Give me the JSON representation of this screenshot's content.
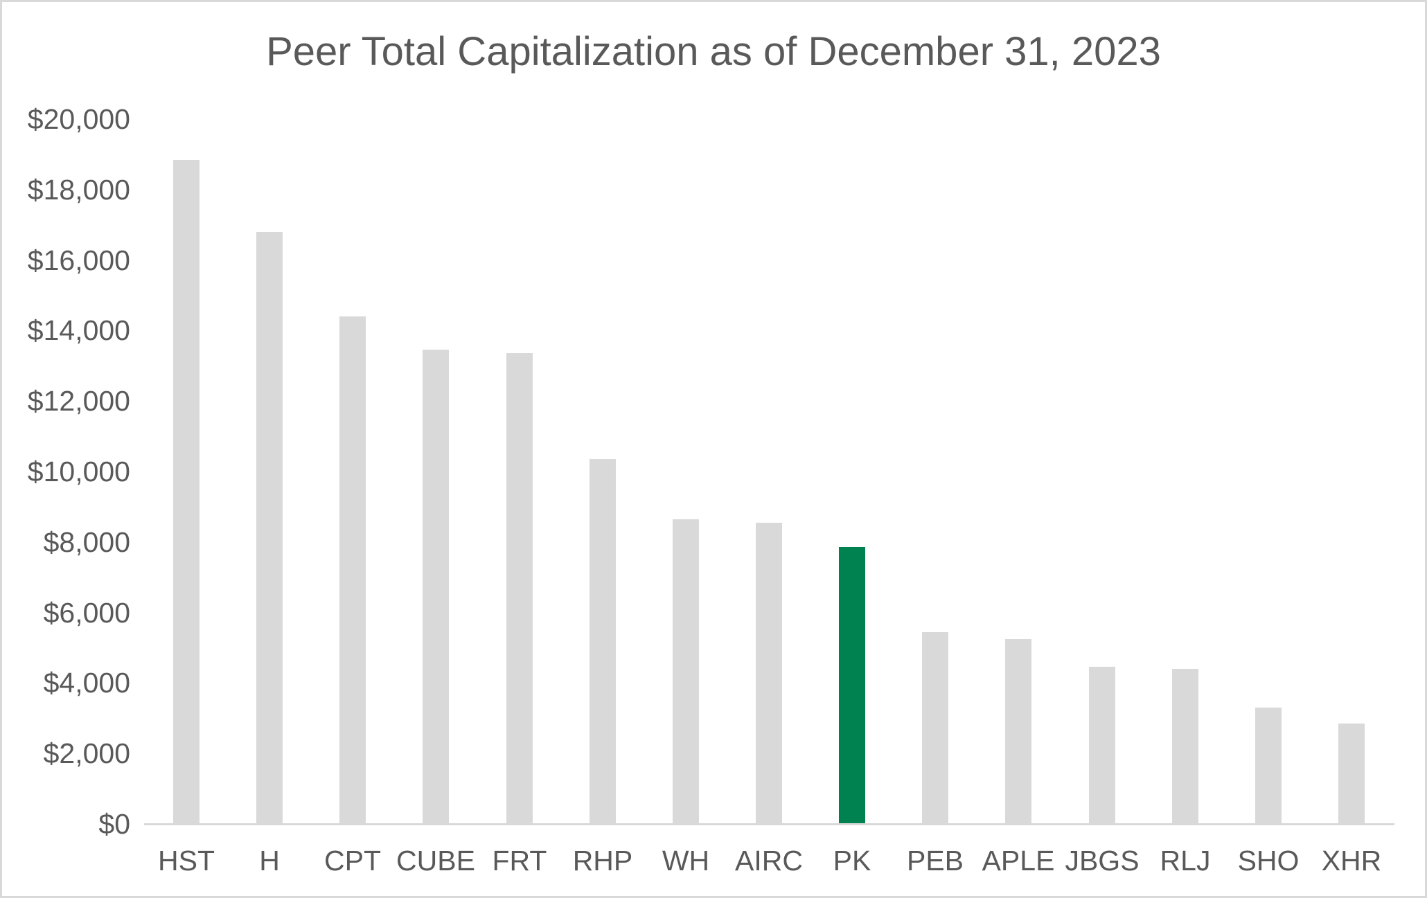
{
  "chart_data": {
    "type": "bar",
    "title": "Peer Total Capitalization as of December 31, 2023",
    "categories": [
      "HST",
      "H",
      "CPT",
      "CUBE",
      "FRT",
      "RHP",
      "WH",
      "AIRC",
      "PK",
      "PEB",
      "APLE",
      "JBGS",
      "RLJ",
      "SHO",
      "XHR"
    ],
    "values": [
      18850,
      16800,
      14400,
      13450,
      13350,
      10350,
      8650,
      8550,
      7850,
      5450,
      5250,
      4450,
      4400,
      3300,
      2850
    ],
    "highlighted_category": "PK",
    "xlabel": "",
    "ylabel": "",
    "ylim": [
      0,
      20000
    ],
    "ytick_step": 2000,
    "ytick_labels": [
      "$0",
      "$2,000",
      "$4,000",
      "$6,000",
      "$8,000",
      "$10,000",
      "$12,000",
      "$14,000",
      "$16,000",
      "$18,000",
      "$20,000"
    ],
    "grid": false,
    "legend": false,
    "colors": {
      "bar_default": "#d9d9d9",
      "bar_highlight": "#008250",
      "text": "#595959",
      "axis_line": "#d9d9d9",
      "background": "#ffffff",
      "canvas_border": "#d9d9d9"
    }
  }
}
